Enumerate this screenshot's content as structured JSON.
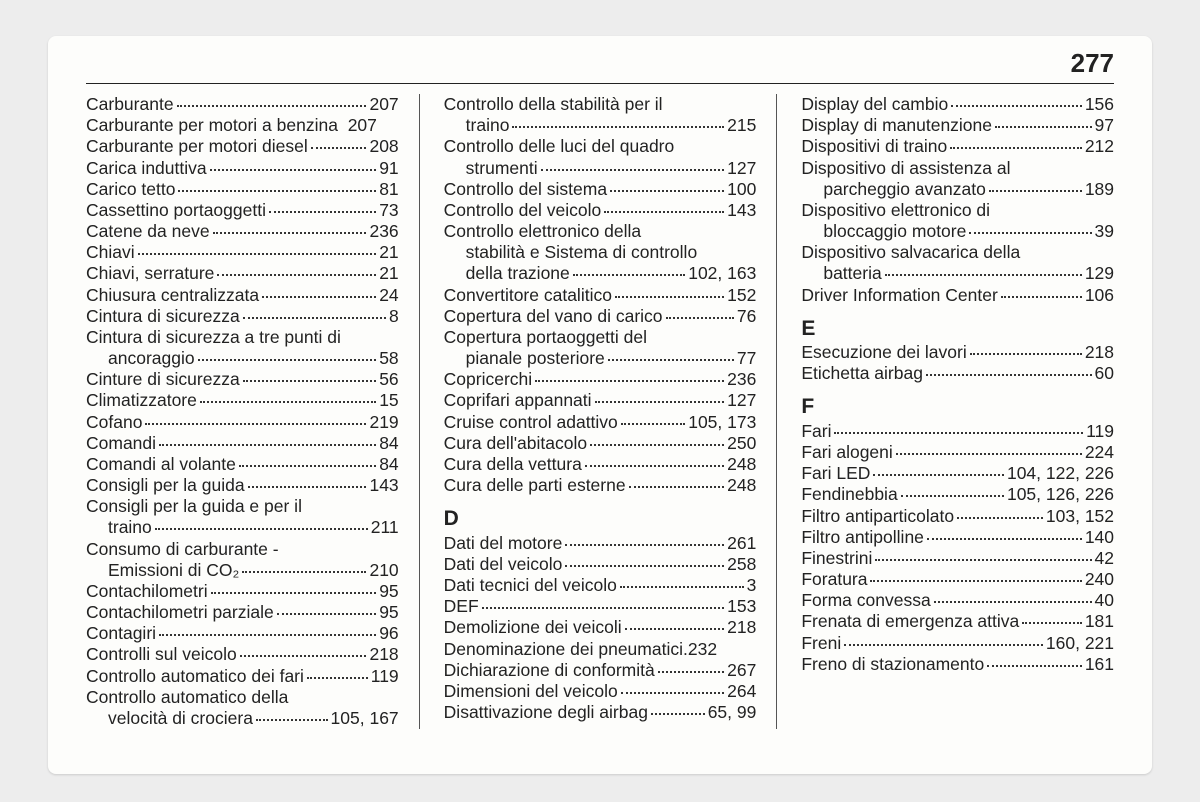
{
  "pageNumber": "277",
  "columns": [
    {
      "items": [
        {
          "type": "entry",
          "text": "Carburante",
          "page": "207"
        },
        {
          "type": "entry",
          "text": "Carburante per motori a benzina",
          "page": "207",
          "nodots": true
        },
        {
          "type": "entry",
          "text": "Carburante per motori diesel",
          "page": "208"
        },
        {
          "type": "entry",
          "text": "Carica induttiva",
          "page": "91"
        },
        {
          "type": "entry",
          "text": "Carico tetto",
          "page": "81"
        },
        {
          "type": "entry",
          "text": "Cassettino portaoggetti",
          "page": "73"
        },
        {
          "type": "entry",
          "text": "Catene da neve",
          "page": "236"
        },
        {
          "type": "entry",
          "text": "Chiavi",
          "page": "21"
        },
        {
          "type": "entry",
          "text": "Chiavi, serrature",
          "page": "21"
        },
        {
          "type": "entry",
          "text": "Chiusura centralizzata",
          "page": "24"
        },
        {
          "type": "entry",
          "text": "Cintura di sicurezza",
          "page": "8"
        },
        {
          "type": "wrap",
          "lines": [
            "Cintura di sicurezza a tre punti di",
            "ancoraggio"
          ],
          "page": "58"
        },
        {
          "type": "entry",
          "text": "Cinture di sicurezza",
          "page": "56"
        },
        {
          "type": "entry",
          "text": "Climatizzatore",
          "page": "15"
        },
        {
          "type": "entry",
          "text": "Cofano",
          "page": "219"
        },
        {
          "type": "entry",
          "text": "Comandi",
          "page": "84"
        },
        {
          "type": "entry",
          "text": "Comandi al volante",
          "page": "84"
        },
        {
          "type": "entry",
          "text": "Consigli per la guida",
          "page": "143"
        },
        {
          "type": "wrap",
          "lines": [
            "Consigli per la guida e per il",
            "traino"
          ],
          "page": "211"
        },
        {
          "type": "wrap",
          "lines": [
            "Consumo di carburante -",
            "Emissioni di CO₂"
          ],
          "page": "210"
        },
        {
          "type": "entry",
          "text": "Contachilometri",
          "page": "95"
        },
        {
          "type": "entry",
          "text": "Contachilometri parziale",
          "page": "95"
        },
        {
          "type": "entry",
          "text": "Contagiri",
          "page": "96"
        },
        {
          "type": "entry",
          "text": "Controlli sul veicolo",
          "page": "218"
        },
        {
          "type": "entry",
          "text": "Controllo automatico dei fari",
          "page": "119"
        },
        {
          "type": "wrap",
          "lines": [
            "Controllo automatico della",
            "velocità di crociera"
          ],
          "page": "105, 167"
        }
      ]
    },
    {
      "items": [
        {
          "type": "wrap",
          "lines": [
            "Controllo della stabilità per il",
            "traino"
          ],
          "page": "215"
        },
        {
          "type": "wrap",
          "lines": [
            "Controllo delle luci del quadro",
            "strumenti"
          ],
          "page": "127"
        },
        {
          "type": "entry",
          "text": "Controllo del sistema",
          "page": "100"
        },
        {
          "type": "entry",
          "text": "Controllo del veicolo",
          "page": "143"
        },
        {
          "type": "wrap",
          "lines": [
            "Controllo elettronico della",
            "stabilità e Sistema di controllo",
            "della trazione"
          ],
          "page": "102, 163"
        },
        {
          "type": "entry",
          "text": "Convertitore catalitico",
          "page": "152"
        },
        {
          "type": "entry",
          "text": "Copertura del vano di carico",
          "page": "76"
        },
        {
          "type": "wrap",
          "lines": [
            "Copertura portaoggetti del",
            "pianale posteriore"
          ],
          "page": "77"
        },
        {
          "type": "entry",
          "text": "Copricerchi",
          "page": "236"
        },
        {
          "type": "entry",
          "text": "Coprifari appannati",
          "page": "127"
        },
        {
          "type": "entry",
          "text": "Cruise control adattivo",
          "page": "105, 173"
        },
        {
          "type": "entry",
          "text": "Cura dell'abitacolo",
          "page": "250"
        },
        {
          "type": "entry",
          "text": "Cura della vettura",
          "page": "248"
        },
        {
          "type": "entry",
          "text": "Cura delle parti esterne",
          "page": "248"
        },
        {
          "type": "letter",
          "text": "D"
        },
        {
          "type": "entry",
          "text": "Dati del motore",
          "page": "261"
        },
        {
          "type": "entry",
          "text": "Dati del veicolo",
          "page": "258"
        },
        {
          "type": "entry",
          "text": "Dati tecnici del veicolo",
          "page": "3"
        },
        {
          "type": "entry",
          "text": "DEF",
          "page": "153"
        },
        {
          "type": "entry",
          "text": "Demolizione dei veicoli",
          "page": "218"
        },
        {
          "type": "entry",
          "text": "Denominazione dei pneumatici",
          "page": "232",
          "tight": true
        },
        {
          "type": "entry",
          "text": "Dichiarazione di conformità",
          "page": "267"
        },
        {
          "type": "entry",
          "text": "Dimensioni del veicolo",
          "page": "264"
        },
        {
          "type": "entry",
          "text": "Disattivazione degli airbag",
          "page": "65, 99"
        }
      ]
    },
    {
      "items": [
        {
          "type": "entry",
          "text": "Display del cambio",
          "page": "156"
        },
        {
          "type": "entry",
          "text": "Display di manutenzione",
          "page": "97"
        },
        {
          "type": "entry",
          "text": "Dispositivi di traino",
          "page": "212"
        },
        {
          "type": "wrap",
          "lines": [
            "Dispositivo di assistenza al",
            "parcheggio avanzato"
          ],
          "page": "189"
        },
        {
          "type": "wrap",
          "lines": [
            "Dispositivo elettronico di",
            "bloccaggio motore"
          ],
          "page": "39"
        },
        {
          "type": "wrap",
          "lines": [
            "Dispositivo salvacarica della",
            "batteria"
          ],
          "page": "129"
        },
        {
          "type": "entry",
          "text": "Driver Information Center",
          "page": "106"
        },
        {
          "type": "letter",
          "text": "E"
        },
        {
          "type": "entry",
          "text": "Esecuzione dei lavori",
          "page": "218"
        },
        {
          "type": "entry",
          "text": "Etichetta airbag",
          "page": "60"
        },
        {
          "type": "letter",
          "text": "F"
        },
        {
          "type": "entry",
          "text": "Fari",
          "page": "119"
        },
        {
          "type": "entry",
          "text": "Fari alogeni",
          "page": "224"
        },
        {
          "type": "entry",
          "text": "Fari LED",
          "page": "104, 122, 226"
        },
        {
          "type": "entry",
          "text": "Fendinebbia",
          "page": "105, 126, 226"
        },
        {
          "type": "entry",
          "text": "Filtro antiparticolato",
          "page": "103, 152"
        },
        {
          "type": "entry",
          "text": "Filtro antipolline",
          "page": "140"
        },
        {
          "type": "entry",
          "text": "Finestrini",
          "page": "42"
        },
        {
          "type": "entry",
          "text": "Foratura",
          "page": "240"
        },
        {
          "type": "entry",
          "text": "Forma convessa",
          "page": "40"
        },
        {
          "type": "entry",
          "text": "Frenata di emergenza attiva",
          "page": "181"
        },
        {
          "type": "entry",
          "text": "Freni",
          "page": "160, 221"
        },
        {
          "type": "entry",
          "text": "Freno di stazionamento",
          "page": "161"
        }
      ]
    }
  ]
}
